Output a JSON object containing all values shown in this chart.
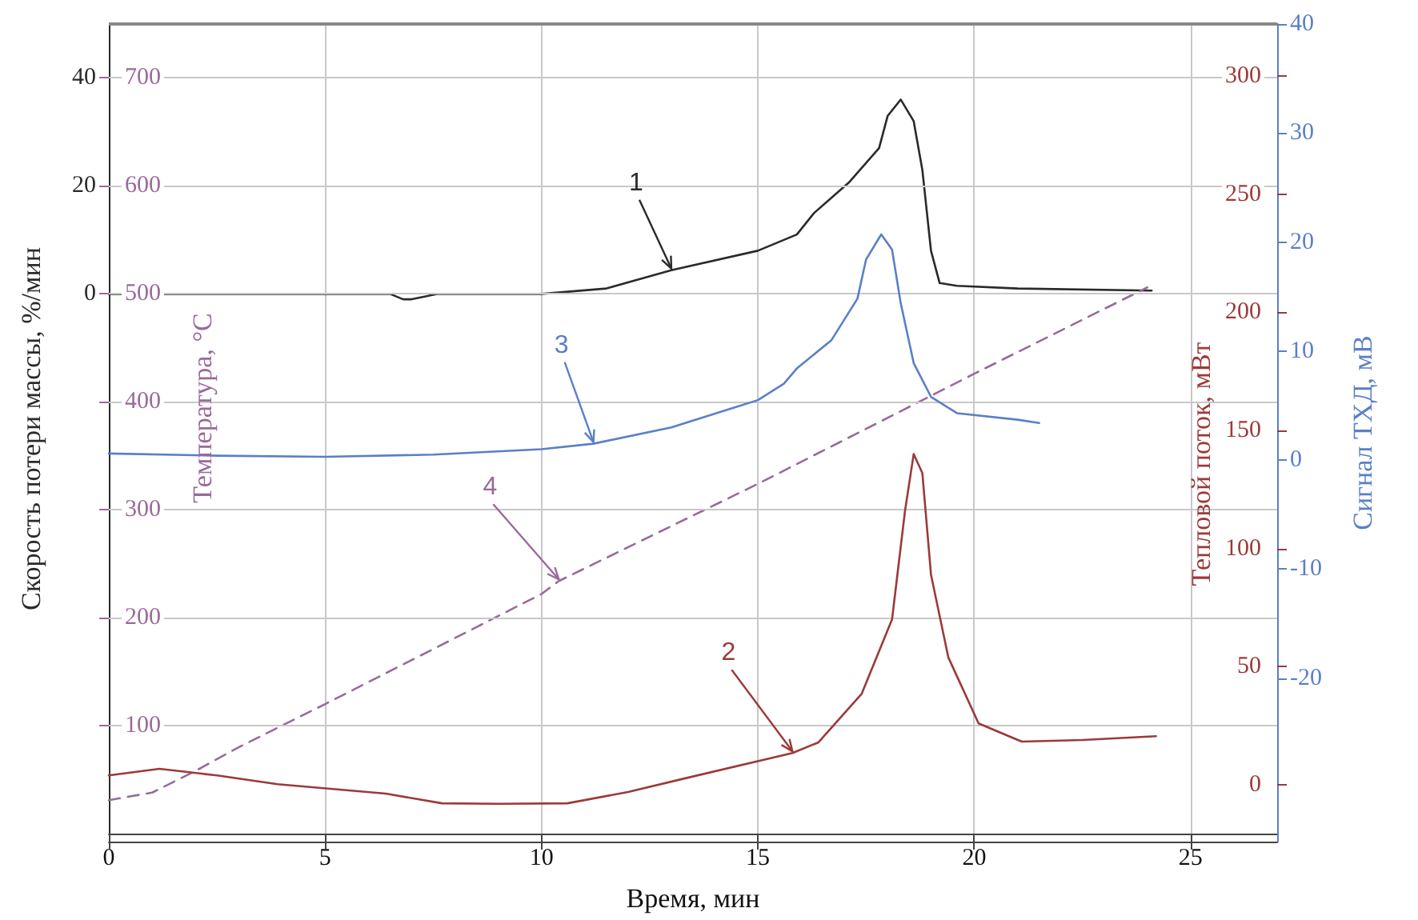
{
  "chart_data": [
    {
      "type": "line",
      "xlabel": "Время, мин",
      "ylabel": "Скорость потери массы, %/мин",
      "y2label": "Температура, °C",
      "xlim": [
        0,
        27
      ],
      "xticks": [
        0,
        5,
        10,
        15,
        20,
        25
      ],
      "ylim": [
        -100,
        50
      ],
      "yticks": [
        0,
        20,
        40
      ],
      "y2lim": [
        0,
        750
      ],
      "y2ticks": [
        100,
        200,
        300,
        400,
        500,
        600,
        700
      ],
      "grid": true,
      "marker": "none",
      "series": [
        {
          "name": "1",
          "color": "#2a2a2a",
          "line_style": "solid",
          "x": [
            0,
            3,
            6.5,
            6.8,
            7.0,
            7.3,
            7.6,
            10,
            11.5,
            13,
            15,
            15.9,
            16.3,
            17.1,
            17.8,
            18,
            18.3,
            18.6,
            18.8,
            19.0,
            19.2,
            19.6,
            21,
            24.1
          ],
          "values": [
            0,
            0,
            0,
            -1,
            -1,
            -0.5,
            0,
            0,
            1,
            4.4,
            8,
            11,
            15,
            20.6,
            27,
            33,
            36,
            32,
            23,
            8,
            2,
            1.5,
            1,
            0.6
          ]
        },
        {
          "name": "4",
          "color": "#9a6a9a",
          "axis": "y2",
          "line_style": "dashed",
          "x": [
            0,
            1,
            2,
            3,
            5,
            10,
            10.4,
            15,
            20,
            24
          ],
          "values": [
            31,
            38,
            58,
            80,
            120,
            222,
            234,
            324,
            426,
            506
          ]
        }
      ]
    },
    {
      "type": "line",
      "ylabel": "Тепловой поток, мВт",
      "y2label": "Сигнал ТХД, мВ",
      "xlim": [
        0,
        27
      ],
      "xticks": [
        0,
        5,
        10,
        15,
        20,
        25
      ],
      "ylim": [
        -24,
        322
      ],
      "yticks": [
        0,
        50,
        100,
        150,
        200,
        250,
        300
      ],
      "y2lim": [
        -35,
        40
      ],
      "y2ticks": [
        -20,
        -10,
        0,
        10,
        20,
        30,
        40
      ],
      "tick_labels": "y",
      "marker": "none",
      "series": [
        {
          "name": "2",
          "color": "#9b3a3a",
          "line_style": "solid",
          "x": [
            0,
            1.17,
            2.5,
            3.9,
            6.4,
            7.7,
            9,
            10.6,
            12,
            13.3,
            15.8,
            16.4,
            17.4,
            18.1,
            18.4,
            18.6,
            18.8,
            19.0,
            19.4,
            20.1,
            21.1,
            22.5,
            24.2
          ],
          "values": [
            4,
            6.8,
            4,
            0.3,
            -3.7,
            -7.8,
            -8,
            -7.8,
            -3,
            2.7,
            13.5,
            18,
            38.6,
            70,
            116,
            140,
            132,
            89,
            54,
            26,
            18.3,
            19,
            20.6
          ]
        },
        {
          "name": "3",
          "color": "#5b7fc7",
          "axis": "y2",
          "line_style": "solid",
          "x": [
            0,
            2.5,
            5,
            7.5,
            10,
            11.2,
            13,
            15,
            15.6,
            15.9,
            16.7,
            17.3,
            17.5,
            17.85,
            18.1,
            18.3,
            18.6,
            19,
            19.6,
            21,
            21.5
          ],
          "values": [
            0.6,
            0.4,
            0.3,
            0.5,
            1,
            1.5,
            3,
            5.5,
            7,
            8.4,
            11,
            14.8,
            18.4,
            20.7,
            19.3,
            14.4,
            8.9,
            5.8,
            4.3,
            3.7,
            3.4
          ]
        }
      ]
    }
  ]
}
